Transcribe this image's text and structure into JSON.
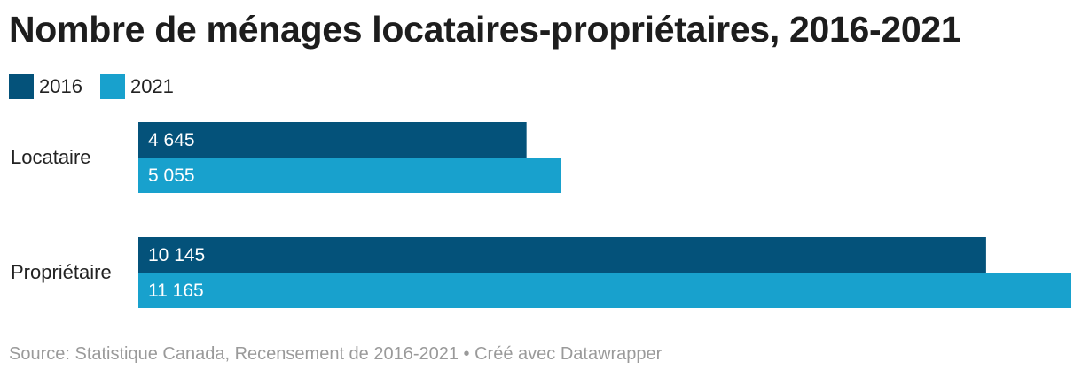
{
  "colors": {
    "series_2016": "#04527a",
    "series_2021": "#18a1cd",
    "value_label": "#ffffff"
  },
  "chart_data": {
    "type": "bar",
    "orientation": "horizontal",
    "title": "Nombre de ménages locataires-propriétaires, 2016-2021",
    "categories": [
      "Locataire",
      "Propriétaire"
    ],
    "series": [
      {
        "name": "2016",
        "values": [
          4645,
          10145
        ],
        "labels": [
          "4 645",
          "10 145"
        ]
      },
      {
        "name": "2021",
        "values": [
          5055,
          11165
        ],
        "labels": [
          "5 055",
          "11 165"
        ]
      }
    ],
    "xlim": [
      0,
      11165
    ],
    "grid": false,
    "legend": "top-left"
  },
  "source": "Source: Statistique Canada, Recensement de 2016-2021 • Créé avec Datawrapper"
}
